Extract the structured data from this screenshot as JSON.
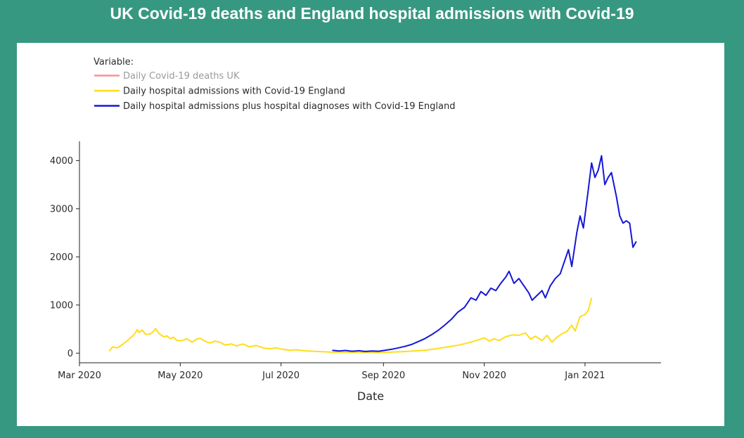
{
  "title": "UK Covid-19 deaths and England hospital admissions with Covid-19",
  "chart_data": {
    "type": "line",
    "xlabel": "Date",
    "ylabel": "",
    "xlim": [
      "2020-03-01",
      "2021-02-16"
    ],
    "ylim": [
      -200,
      4400
    ],
    "x_ticks": [
      {
        "date": "2020-03-01",
        "label": "Mar 2020"
      },
      {
        "date": "2020-05-01",
        "label": "May 2020"
      },
      {
        "date": "2020-07-01",
        "label": "Jul 2020"
      },
      {
        "date": "2020-09-01",
        "label": "Sep 2020"
      },
      {
        "date": "2020-11-01",
        "label": "Nov 2020"
      },
      {
        "date": "2021-01-01",
        "label": "Jan 2021"
      }
    ],
    "y_ticks": [
      {
        "value": 0,
        "label": "0"
      },
      {
        "value": 1000,
        "label": "1000"
      },
      {
        "value": 2000,
        "label": "2000"
      },
      {
        "value": 3000,
        "label": "3000"
      },
      {
        "value": 4000,
        "label": "4000"
      }
    ],
    "grid": false,
    "legend": {
      "title": "Variable:",
      "placement": "top-left"
    },
    "series": [
      {
        "name": "Daily Covid-19 deaths UK",
        "color": "#f4949a",
        "hidden": true,
        "points": []
      },
      {
        "name": "Daily hospital admissions with Covid-19 England",
        "color": "#ffdd1a",
        "hidden": false,
        "points": [
          [
            "2020-03-19",
            40
          ],
          [
            "2020-03-21",
            130
          ],
          [
            "2020-03-24",
            110
          ],
          [
            "2020-03-27",
            180
          ],
          [
            "2020-03-30",
            260
          ],
          [
            "2020-04-02",
            350
          ],
          [
            "2020-04-04",
            430
          ],
          [
            "2020-04-05",
            490
          ],
          [
            "2020-04-06",
            430
          ],
          [
            "2020-04-08",
            480
          ],
          [
            "2020-04-10",
            390
          ],
          [
            "2020-04-13",
            400
          ],
          [
            "2020-04-15",
            460
          ],
          [
            "2020-04-16",
            510
          ],
          [
            "2020-04-18",
            410
          ],
          [
            "2020-04-21",
            340
          ],
          [
            "2020-04-23",
            360
          ],
          [
            "2020-04-25",
            300
          ],
          [
            "2020-04-27",
            330
          ],
          [
            "2020-04-29",
            260
          ],
          [
            "2020-05-02",
            260
          ],
          [
            "2020-05-05",
            300
          ],
          [
            "2020-05-08",
            230
          ],
          [
            "2020-05-11",
            290
          ],
          [
            "2020-05-13",
            310
          ],
          [
            "2020-05-16",
            250
          ],
          [
            "2020-05-19",
            210
          ],
          [
            "2020-05-22",
            250
          ],
          [
            "2020-05-25",
            230
          ],
          [
            "2020-05-28",
            170
          ],
          [
            "2020-06-01",
            190
          ],
          [
            "2020-06-04",
            150
          ],
          [
            "2020-06-08",
            190
          ],
          [
            "2020-06-12",
            130
          ],
          [
            "2020-06-16",
            160
          ],
          [
            "2020-06-20",
            110
          ],
          [
            "2020-06-24",
            90
          ],
          [
            "2020-06-28",
            110
          ],
          [
            "2020-07-02",
            80
          ],
          [
            "2020-07-06",
            60
          ],
          [
            "2020-07-10",
            70
          ],
          [
            "2020-07-15",
            50
          ],
          [
            "2020-07-20",
            40
          ],
          [
            "2020-07-26",
            30
          ],
          [
            "2020-08-01",
            20
          ],
          [
            "2020-08-08",
            20
          ],
          [
            "2020-08-15",
            15
          ],
          [
            "2020-08-22",
            15
          ],
          [
            "2020-08-29",
            15
          ],
          [
            "2020-09-05",
            20
          ],
          [
            "2020-09-12",
            30
          ],
          [
            "2020-09-19",
            45
          ],
          [
            "2020-09-26",
            60
          ],
          [
            "2020-10-03",
            90
          ],
          [
            "2020-10-10",
            130
          ],
          [
            "2020-10-17",
            170
          ],
          [
            "2020-10-24",
            230
          ],
          [
            "2020-10-29",
            280
          ],
          [
            "2020-11-01",
            320
          ],
          [
            "2020-11-04",
            250
          ],
          [
            "2020-11-07",
            300
          ],
          [
            "2020-11-10",
            260
          ],
          [
            "2020-11-14",
            340
          ],
          [
            "2020-11-18",
            380
          ],
          [
            "2020-11-22",
            370
          ],
          [
            "2020-11-26",
            420
          ],
          [
            "2020-11-29",
            290
          ],
          [
            "2020-12-02",
            350
          ],
          [
            "2020-12-06",
            260
          ],
          [
            "2020-12-09",
            370
          ],
          [
            "2020-12-12",
            230
          ],
          [
            "2020-12-15",
            330
          ],
          [
            "2020-12-18",
            400
          ],
          [
            "2020-12-21",
            450
          ],
          [
            "2020-12-24",
            580
          ],
          [
            "2020-12-26",
            460
          ],
          [
            "2020-12-29",
            760
          ],
          [
            "2021-01-01",
            800
          ],
          [
            "2021-01-03",
            890
          ],
          [
            "2021-01-05",
            1150
          ]
        ]
      },
      {
        "name": "Daily hospital admissions plus hospital diagnoses with Covid-19 England",
        "color": "#1616d8",
        "hidden": false,
        "points": [
          [
            "2020-08-01",
            60
          ],
          [
            "2020-08-05",
            45
          ],
          [
            "2020-08-09",
            55
          ],
          [
            "2020-08-13",
            40
          ],
          [
            "2020-08-17",
            50
          ],
          [
            "2020-08-21",
            35
          ],
          [
            "2020-08-25",
            45
          ],
          [
            "2020-08-29",
            40
          ],
          [
            "2020-09-02",
            60
          ],
          [
            "2020-09-06",
            80
          ],
          [
            "2020-09-10",
            110
          ],
          [
            "2020-09-14",
            140
          ],
          [
            "2020-09-18",
            180
          ],
          [
            "2020-09-22",
            240
          ],
          [
            "2020-09-26",
            300
          ],
          [
            "2020-09-30",
            380
          ],
          [
            "2020-10-04",
            470
          ],
          [
            "2020-10-08",
            580
          ],
          [
            "2020-10-12",
            700
          ],
          [
            "2020-10-16",
            850
          ],
          [
            "2020-10-20",
            950
          ],
          [
            "2020-10-24",
            1150
          ],
          [
            "2020-10-27",
            1100
          ],
          [
            "2020-10-30",
            1280
          ],
          [
            "2020-11-02",
            1200
          ],
          [
            "2020-11-05",
            1350
          ],
          [
            "2020-11-08",
            1300
          ],
          [
            "2020-11-11",
            1450
          ],
          [
            "2020-11-14",
            1580
          ],
          [
            "2020-11-16",
            1700
          ],
          [
            "2020-11-19",
            1450
          ],
          [
            "2020-11-22",
            1550
          ],
          [
            "2020-11-25",
            1400
          ],
          [
            "2020-11-28",
            1250
          ],
          [
            "2020-11-30",
            1100
          ],
          [
            "2020-12-03",
            1200
          ],
          [
            "2020-12-06",
            1300
          ],
          [
            "2020-12-08",
            1150
          ],
          [
            "2020-12-11",
            1400
          ],
          [
            "2020-12-14",
            1550
          ],
          [
            "2020-12-17",
            1650
          ],
          [
            "2020-12-20",
            1950
          ],
          [
            "2020-12-22",
            2150
          ],
          [
            "2020-12-24",
            1800
          ],
          [
            "2020-12-27",
            2500
          ],
          [
            "2020-12-29",
            2850
          ],
          [
            "2020-12-31",
            2600
          ],
          [
            "2021-01-03",
            3400
          ],
          [
            "2021-01-05",
            3950
          ],
          [
            "2021-01-07",
            3650
          ],
          [
            "2021-01-09",
            3800
          ],
          [
            "2021-01-11",
            4100
          ],
          [
            "2021-01-13",
            3500
          ],
          [
            "2021-01-15",
            3650
          ],
          [
            "2021-01-17",
            3750
          ],
          [
            "2021-01-20",
            3250
          ],
          [
            "2021-01-22",
            2850
          ],
          [
            "2021-01-24",
            2700
          ],
          [
            "2021-01-26",
            2750
          ],
          [
            "2021-01-28",
            2700
          ],
          [
            "2021-01-30",
            2200
          ],
          [
            "2021-02-01",
            2320
          ]
        ]
      }
    ]
  }
}
